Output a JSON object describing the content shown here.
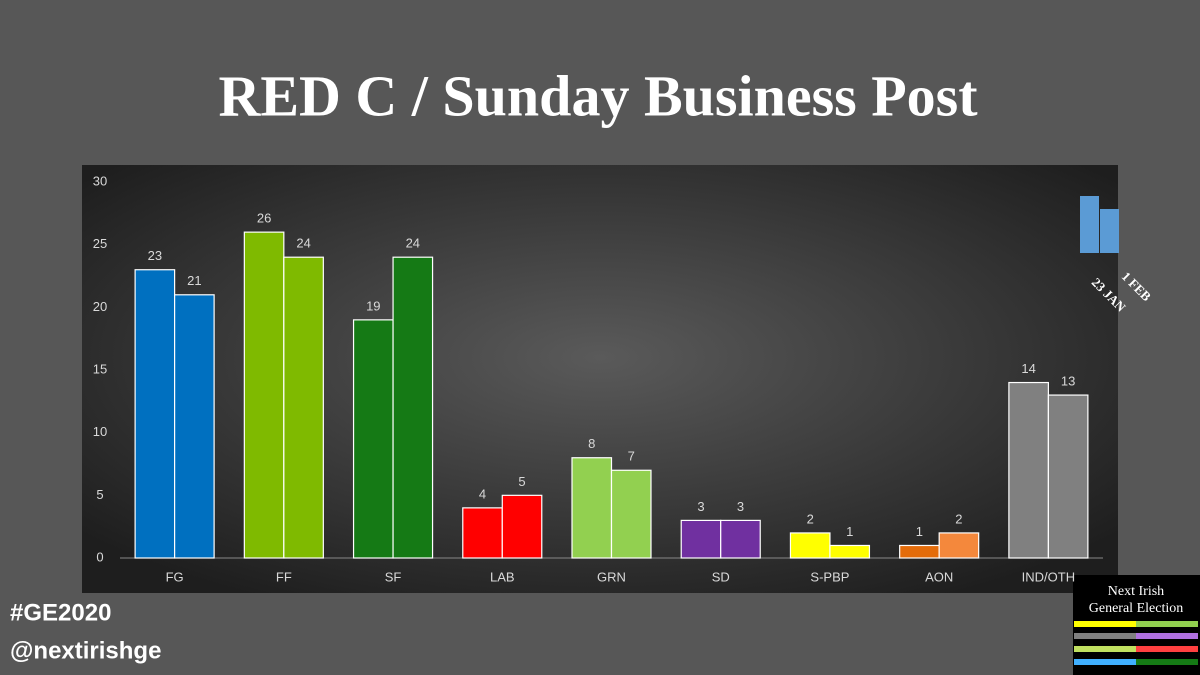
{
  "chart_data": {
    "type": "bar",
    "title": "RED C / Sunday Business Post",
    "categories": [
      "FG",
      "FF",
      "SF",
      "LAB",
      "GRN",
      "SD",
      "S-PBP",
      "AON",
      "IND/OTH"
    ],
    "series": [
      {
        "name": "23 JAN",
        "color": "#5b9bd5",
        "values": [
          23,
          26,
          19,
          4,
          8,
          3,
          2,
          1,
          14
        ],
        "colors": [
          "#0070c0",
          "#7fba00",
          "#157a15",
          "#ff0000",
          "#92d050",
          "#7030a0",
          "#ffff00",
          "#e46c0a",
          "#808080"
        ]
      },
      {
        "name": "1 FEB",
        "color": "#5b9bd5",
        "values": [
          21,
          24,
          24,
          5,
          7,
          3,
          1,
          2,
          13
        ],
        "colors": [
          "#0070c0",
          "#7fba00",
          "#157a15",
          "#ff0000",
          "#92d050",
          "#7030a0",
          "#ffff00",
          "#f4883c",
          "#808080"
        ]
      }
    ],
    "ylim": [
      0,
      30
    ],
    "yticks": [
      0,
      5,
      10,
      15,
      20,
      25,
      30
    ],
    "grid": false
  },
  "footer": {
    "hashtag": "#GE2020",
    "handle": "@nextirishge"
  },
  "logo": {
    "lines": [
      "Next Irish",
      "General Election"
    ]
  }
}
